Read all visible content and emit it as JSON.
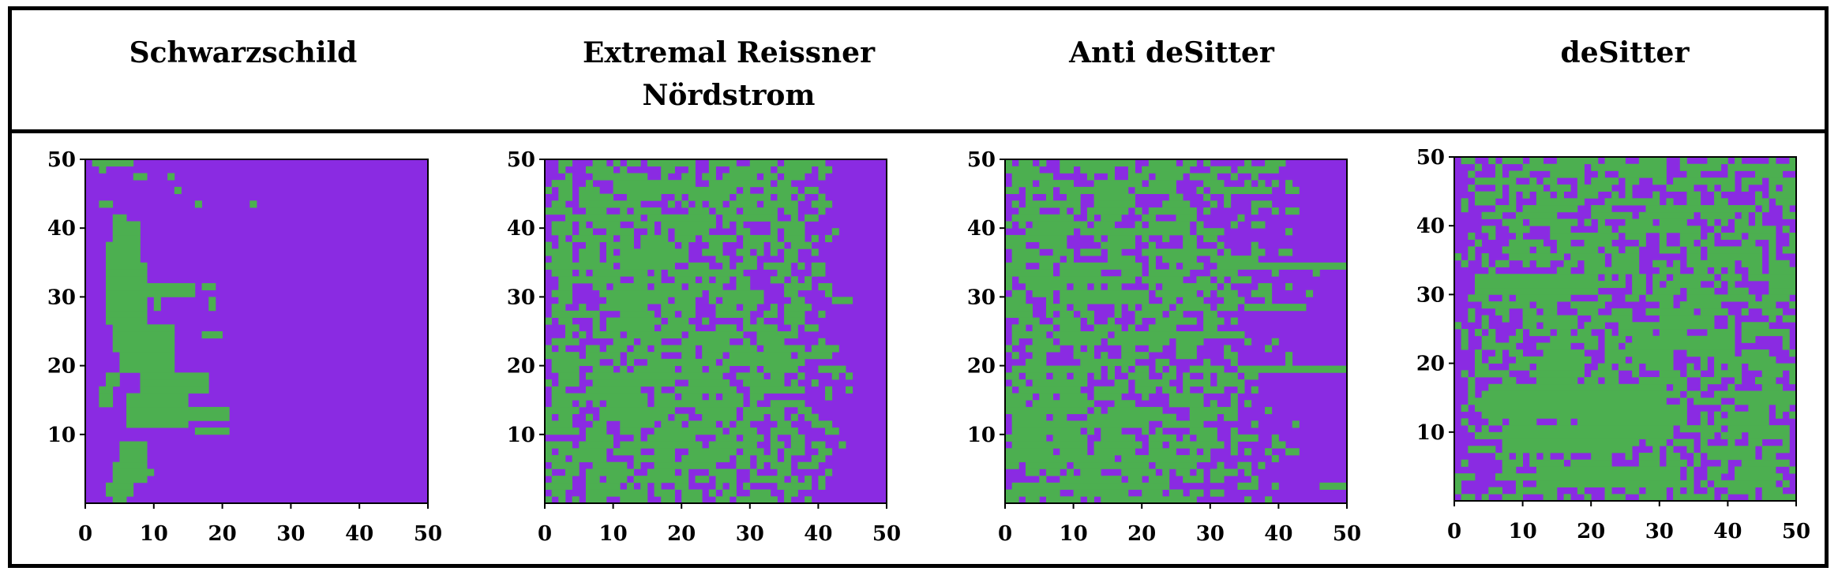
{
  "colors": {
    "background": "#8a2be2",
    "cell_on": "#4caf50",
    "frame": "#000000"
  },
  "chart_data": [
    {
      "type": "heatmap",
      "title": "Schwarzschild",
      "xlim": [
        0,
        50
      ],
      "ylim": [
        0,
        50
      ],
      "x_ticks": [
        0,
        10,
        20,
        30,
        40,
        50
      ],
      "y_ticks": [
        10,
        20,
        30,
        40,
        50
      ],
      "grid": false,
      "cells": [
        [
          1,
          50,
          6,
          1
        ],
        [
          2,
          49,
          1,
          1
        ],
        [
          7,
          48,
          2,
          1
        ],
        [
          12,
          48,
          1,
          1
        ],
        [
          2,
          44,
          2,
          1
        ],
        [
          4,
          42,
          2,
          1
        ],
        [
          13,
          46,
          1,
          1
        ],
        [
          16,
          44,
          1,
          1
        ],
        [
          24,
          44,
          1,
          1
        ],
        [
          4,
          39,
          4,
          3
        ],
        [
          3,
          36,
          5,
          3
        ],
        [
          3,
          33,
          6,
          3
        ],
        [
          3,
          27,
          6,
          6
        ],
        [
          9,
          31,
          7,
          2
        ],
        [
          17,
          32,
          2,
          1
        ],
        [
          18,
          29,
          1,
          2
        ],
        [
          10,
          29,
          1,
          2
        ],
        [
          17,
          25,
          3,
          1
        ],
        [
          4,
          23,
          9,
          4
        ],
        [
          5,
          20,
          8,
          3
        ],
        [
          3,
          18,
          2,
          2
        ],
        [
          2,
          15,
          2,
          3
        ],
        [
          8,
          17,
          10,
          3
        ],
        [
          6,
          12,
          9,
          5
        ],
        [
          15,
          13,
          6,
          2
        ],
        [
          16,
          11,
          5,
          1
        ],
        [
          5,
          7,
          4,
          3
        ],
        [
          4,
          4,
          5,
          3
        ],
        [
          3,
          2,
          4,
          2
        ],
        [
          9,
          5,
          1,
          1
        ],
        [
          4,
          1,
          2,
          1
        ]
      ]
    },
    {
      "type": "heatmap",
      "title": "Extremal Reissner Nördstrom",
      "xlim": [
        0,
        50
      ],
      "ylim": [
        0,
        50
      ],
      "x_ticks": [
        0,
        10,
        20,
        30,
        40,
        50
      ],
      "y_ticks": [
        10,
        20,
        30,
        40,
        50
      ],
      "grid": false,
      "seed": 7,
      "profile": [
        [
          0,
          0.25
        ],
        [
          2,
          0.45
        ],
        [
          3,
          0.95
        ],
        [
          4,
          0.3
        ],
        [
          8,
          0.6
        ],
        [
          14,
          0.55
        ],
        [
          20,
          0.6
        ],
        [
          26,
          0.52
        ],
        [
          32,
          0.5
        ],
        [
          37,
          0.4
        ],
        [
          42,
          0.12
        ],
        [
          45,
          0.0
        ],
        [
          50,
          0.0
        ]
      ]
    },
    {
      "type": "heatmap",
      "title": "Anti deSitter",
      "xlim": [
        0,
        50
      ],
      "ylim": [
        0,
        50
      ],
      "x_ticks": [
        0,
        10,
        20,
        30,
        40,
        50
      ],
      "y_ticks": [
        10,
        20,
        30,
        40,
        50
      ],
      "grid": false,
      "seed": 19,
      "profile": [
        [
          0,
          0.55
        ],
        [
          10,
          0.55
        ],
        [
          20,
          0.55
        ],
        [
          28,
          0.5
        ],
        [
          33,
          0.3
        ],
        [
          38,
          0.12
        ],
        [
          44,
          0.04
        ],
        [
          50,
          0.0
        ]
      ],
      "streaks": [
        [
          34,
          35,
          16
        ],
        [
          36,
          29,
          8
        ],
        [
          34,
          20,
          16
        ],
        [
          46,
          3,
          4
        ],
        [
          0,
          2,
          8
        ],
        [
          34,
          49,
          6
        ],
        [
          34,
          46,
          4
        ]
      ]
    },
    {
      "type": "heatmap",
      "title": "deSitter",
      "xlim": [
        0,
        50
      ],
      "ylim": [
        0,
        50
      ],
      "x_ticks": [
        0,
        10,
        20,
        30,
        40,
        50
      ],
      "y_ticks": [
        10,
        20,
        30,
        40,
        50
      ],
      "grid": false,
      "seed": 31,
      "profile": [
        [
          0,
          0.15
        ],
        [
          5,
          0.4
        ],
        [
          15,
          0.5
        ],
        [
          25,
          0.5
        ],
        [
          35,
          0.5
        ],
        [
          45,
          0.45
        ],
        [
          50,
          0.4
        ]
      ],
      "blobs": [
        [
          5,
          13,
          25,
          5
        ],
        [
          7,
          8,
          18,
          4
        ],
        [
          3,
          31,
          18,
          3
        ],
        [
          12,
          3,
          20,
          3
        ]
      ]
    }
  ]
}
